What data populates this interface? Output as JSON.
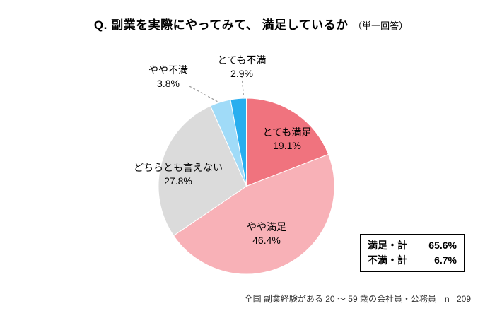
{
  "title": {
    "main": "Q. 副業を実際にやってみて、 満足しているか",
    "suffix": "（単一回答）"
  },
  "chart_data": {
    "type": "pie",
    "title": "Q. 副業を実際にやってみて、 満足しているか（単一回答）",
    "unit": "%",
    "start_angle": "top",
    "direction": "clockwise",
    "legend_position": "none",
    "slices": [
      {
        "label": "とても満足",
        "value": 19.1,
        "pct_text": "19.1%",
        "color": "#F0737E"
      },
      {
        "label": "やや満足",
        "value": 46.4,
        "pct_text": "46.4%",
        "color": "#F8B1B7"
      },
      {
        "label": "どちらとも言えない",
        "value": 27.8,
        "pct_text": "27.8%",
        "color": "#DBDBDB"
      },
      {
        "label": "やや不満",
        "value": 3.8,
        "pct_text": "3.8%",
        "color": "#A0DBF8"
      },
      {
        "label": "とても不満",
        "value": 2.9,
        "pct_text": "2.9%",
        "color": "#29AEEF"
      }
    ]
  },
  "summary_box": {
    "rows": [
      {
        "label": "満足・計",
        "value": "65.6%"
      },
      {
        "label": "不満・計",
        "value": "6.7%"
      }
    ]
  },
  "footnote": "全国 副業経験がある 20 ～ 59 歳の会社員・公務員　n =209"
}
